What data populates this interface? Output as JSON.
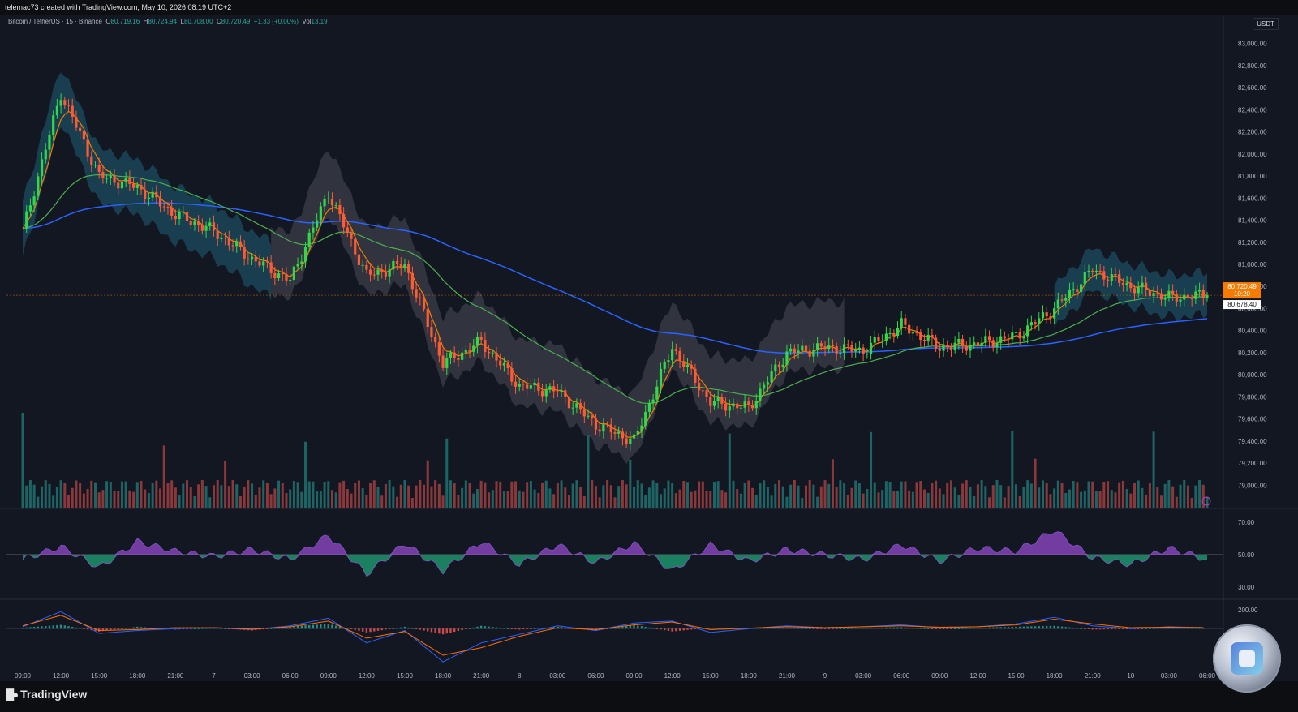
{
  "header": {
    "watermark_text": "telemac73 created with TradingView.com, May 10, 2026 08:19 UTC+2"
  },
  "legend": {
    "symbol": "Bitcoin / TetherUS · 15 · Binance",
    "open_label": "O",
    "open_value": "80,719.16",
    "high_label": "H",
    "high_value": "80,724.94",
    "low_label": "L",
    "low_value": "80,708.00",
    "close_label": "C",
    "close_value": "80,720.49",
    "change": "+1.33 (+0.00%)",
    "vol_label": "Vol",
    "vol_value": "13.19"
  },
  "currency_button": "USDT",
  "price_axis": {
    "ticks": [
      "83,000.00",
      "82,800.00",
      "82,600.00",
      "82,400.00",
      "82,200.00",
      "82,000.00",
      "81,800.00",
      "81,600.00",
      "81,400.00",
      "81,200.00",
      "81,000.00",
      "80,800.00",
      "80,600.00",
      "80,400.00",
      "80,200.00",
      "80,000.00",
      "79,800.00",
      "79,600.00",
      "79,400.00",
      "79,200.00",
      "79,000.00"
    ],
    "last_price_label": "80,720.49",
    "countdown_label": "10:20",
    "reference_price_label": "80,678.40"
  },
  "rsi_axis": {
    "ticks": [
      "70.00",
      "50.00",
      "30.00"
    ]
  },
  "macd_axis": {
    "ticks": [
      "200.00"
    ]
  },
  "time_axis": {
    "ticks": [
      "09:00",
      "12:00",
      "15:00",
      "18:00",
      "21:00",
      "7",
      "03:00",
      "06:00",
      "09:00",
      "12:00",
      "15:00",
      "18:00",
      "21:00",
      "8",
      "03:00",
      "06:00",
      "09:00",
      "12:00",
      "15:00",
      "18:00",
      "21:00",
      "9",
      "03:00",
      "06:00",
      "09:00",
      "12:00",
      "15:00",
      "18:00",
      "21:00",
      "10",
      "03:00",
      "06:00"
    ]
  },
  "footer": {
    "logo_text": "TradingView"
  },
  "colors": {
    "up": "#26a69a",
    "down": "#ef5350",
    "ema_fast": "#f57c00",
    "ema_mid": "#4caf50",
    "ema_slow": "#2962ff",
    "last_price_bg": "#f57c00"
  },
  "chart_data": {
    "type": "line",
    "instrument": "Bitcoin / TetherUS",
    "interval": "15",
    "exchange": "Binance",
    "ylim": [
      78900,
      83100
    ],
    "series": [
      {
        "x": [
          "09:00",
          "12:00",
          "15:00",
          "18:00",
          "21:00",
          "7",
          "03:00",
          "06:00",
          "09:00",
          "12:00",
          "15:00",
          "18:00",
          "21:00",
          "8",
          "03:00",
          "06:00",
          "09:00",
          "12:00",
          "15:00",
          "18:00",
          "21:00",
          "9",
          "03:00",
          "06:00",
          "09:00",
          "12:00",
          "15:00",
          "18:00",
          "21:00",
          "10",
          "03:00",
          "06:00"
        ],
        "values": [
          81300,
          82550,
          81800,
          81700,
          81450,
          81300,
          81050,
          80850,
          81650,
          80900,
          81000,
          80100,
          80300,
          79900,
          79850,
          79550,
          79400,
          80250,
          79750,
          79700,
          80200,
          80250,
          80220,
          80450,
          80250,
          80280,
          80350,
          80600,
          80950,
          80800,
          80700,
          80720
        ]
      }
    ],
    "last_close": 80720.49,
    "rsi": {
      "ylim": [
        25,
        75
      ],
      "midline": 50,
      "values": [
        47,
        55,
        42,
        58,
        52,
        49,
        53,
        47,
        62,
        38,
        57,
        40,
        58,
        44,
        56,
        45,
        57,
        40,
        56,
        46,
        53,
        50,
        47,
        56,
        46,
        54,
        52,
        65,
        48,
        44,
        54,
        47
      ]
    },
    "macd": {
      "ylim": [
        -400,
        250
      ],
      "histogram": [
        10,
        40,
        -30,
        20,
        -10,
        10,
        -20,
        25,
        50,
        -40,
        20,
        -60,
        30,
        -10,
        20,
        -20,
        40,
        -30,
        10,
        5,
        10,
        -5,
        10,
        15,
        -5,
        10,
        20,
        30,
        -10,
        -5,
        10,
        5
      ],
      "macd_line": [
        20,
        180,
        -50,
        -20,
        0,
        10,
        -10,
        30,
        110,
        -150,
        -20,
        -350,
        -150,
        -60,
        30,
        -20,
        60,
        80,
        -40,
        0,
        30,
        10,
        20,
        40,
        10,
        20,
        50,
        120,
        30,
        0,
        20,
        10
      ],
      "signal_line": [
        30,
        140,
        -20,
        -10,
        10,
        10,
        -5,
        20,
        80,
        -100,
        -30,
        -280,
        -200,
        -80,
        10,
        -10,
        40,
        70,
        -10,
        5,
        20,
        10,
        20,
        30,
        15,
        20,
        40,
        100,
        50,
        10,
        15,
        10
      ]
    }
  }
}
